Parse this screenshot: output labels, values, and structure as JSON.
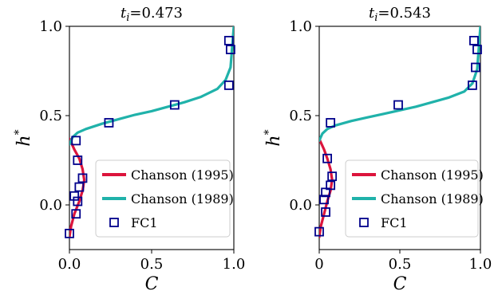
{
  "chart_data": [
    {
      "type": "line",
      "title": "t_i=0.473",
      "xlabel": "C",
      "ylabel": "h*",
      "xlim": [
        0,
        1
      ],
      "ylim": [
        -0.25,
        1.0
      ],
      "xticks": [
        "0.0",
        "0.5",
        "1.0"
      ],
      "yticks": [
        "0.0",
        "0.5",
        "1.0"
      ],
      "legend_position": "lower-right",
      "series": [
        {
          "name": "Chanson (1995)",
          "type": "line",
          "color": "#dc143c",
          "x": [
            0.0,
            0.01,
            0.03,
            0.06,
            0.08,
            0.09,
            0.08,
            0.06,
            0.03,
            0.01,
            0.0
          ],
          "y": [
            -0.18,
            -0.12,
            -0.05,
            0.02,
            0.08,
            0.14,
            0.2,
            0.26,
            0.31,
            0.35,
            0.37
          ]
        },
        {
          "name": "Chanson (1989)",
          "type": "line",
          "color": "#20b2aa",
          "x": [
            0.0,
            0.02,
            0.05,
            0.1,
            0.2,
            0.3,
            0.4,
            0.5,
            0.6,
            0.7,
            0.8,
            0.9,
            0.95,
            0.98,
            1.0
          ],
          "y": [
            0.34,
            0.38,
            0.405,
            0.425,
            0.455,
            0.48,
            0.505,
            0.525,
            0.55,
            0.575,
            0.605,
            0.65,
            0.7,
            0.77,
            1.0
          ]
        },
        {
          "name": "FC1",
          "type": "scatter",
          "color": "#00008b",
          "x": [
            0.04,
            0.05,
            0.08,
            0.06,
            0.03,
            0.05,
            0.04,
            0.0,
            0.24,
            0.64,
            0.97,
            0.98,
            0.97
          ],
          "y": [
            0.36,
            0.25,
            0.15,
            0.1,
            0.05,
            0.02,
            -0.05,
            -0.16,
            0.46,
            0.56,
            0.67,
            0.87,
            0.92
          ]
        }
      ]
    },
    {
      "type": "line",
      "title": "t_i=0.543",
      "xlabel": "C",
      "ylabel": "h*",
      "xlim": [
        0,
        1
      ],
      "ylim": [
        -0.25,
        1.0
      ],
      "xticks": [
        "0",
        "0.5",
        "1.0"
      ],
      "yticks": [
        "0.0",
        "0.5",
        "1.0"
      ],
      "legend_position": "lower-right",
      "series": [
        {
          "name": "Chanson (1995)",
          "type": "line",
          "color": "#dc143c",
          "x": [
            0.0,
            0.01,
            0.03,
            0.05,
            0.07,
            0.08,
            0.07,
            0.05,
            0.03,
            0.01,
            0.0
          ],
          "y": [
            -0.18,
            -0.12,
            -0.05,
            0.02,
            0.08,
            0.14,
            0.2,
            0.26,
            0.31,
            0.35,
            0.37
          ]
        },
        {
          "name": "Chanson (1989)",
          "type": "line",
          "color": "#20b2aa",
          "x": [
            0.0,
            0.02,
            0.05,
            0.1,
            0.2,
            0.3,
            0.4,
            0.5,
            0.6,
            0.7,
            0.8,
            0.9,
            0.95,
            0.98,
            1.0
          ],
          "y": [
            0.36,
            0.4,
            0.425,
            0.445,
            0.47,
            0.49,
            0.51,
            0.53,
            0.55,
            0.575,
            0.6,
            0.635,
            0.68,
            0.76,
            1.0
          ]
        },
        {
          "name": "FC1",
          "type": "scatter",
          "color": "#00008b",
          "x": [
            0.07,
            0.05,
            0.08,
            0.07,
            0.04,
            0.03,
            0.04,
            0.0,
            0.49,
            0.95,
            0.97,
            0.98,
            0.96
          ],
          "y": [
            0.46,
            0.26,
            0.16,
            0.11,
            0.07,
            0.03,
            -0.04,
            -0.15,
            0.56,
            0.67,
            0.77,
            0.87,
            0.92
          ]
        }
      ]
    }
  ]
}
